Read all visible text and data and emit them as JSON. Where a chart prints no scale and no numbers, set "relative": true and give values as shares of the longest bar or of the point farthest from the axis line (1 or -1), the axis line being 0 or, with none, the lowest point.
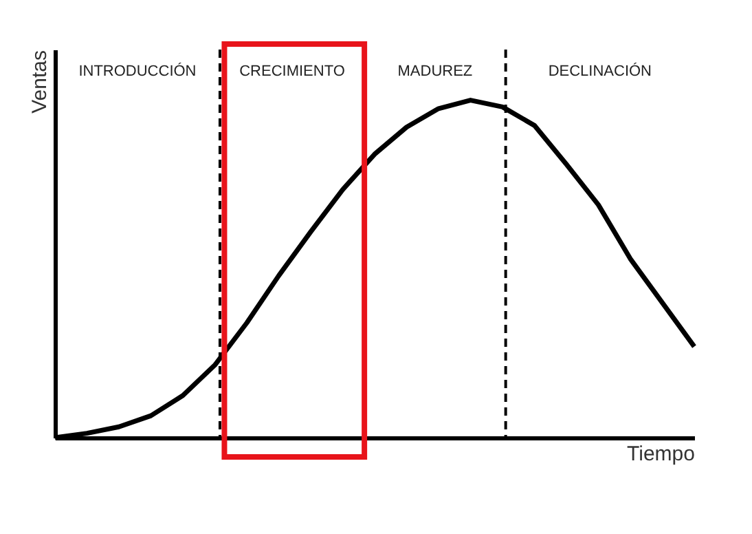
{
  "chart_data": {
    "type": "line",
    "relative": true,
    "xlabel": "Tiempo",
    "ylabel": "Ventas",
    "categories": [
      null,
      null,
      null,
      null,
      null,
      null,
      null,
      null,
      null,
      null,
      null,
      null,
      null,
      null,
      null,
      null,
      null,
      null,
      null,
      null,
      null
    ],
    "series": [
      {
        "color": "#000000",
        "values": [
          0,
          0.013,
          0.032,
          0.065,
          0.125,
          0.215,
          0.34,
          0.48,
          0.61,
          0.735,
          0.84,
          0.92,
          0.975,
          1,
          0.98,
          0.925,
          0.81,
          0.69,
          0.53,
          0.4,
          0.27
        ]
      }
    ],
    "marker": "none",
    "line_style": "solid",
    "annotations": [
      "INTRODUCCIÓN",
      "CRECIMIENTO",
      "MADUREZ",
      "DECLINACIÓN"
    ]
  }
}
